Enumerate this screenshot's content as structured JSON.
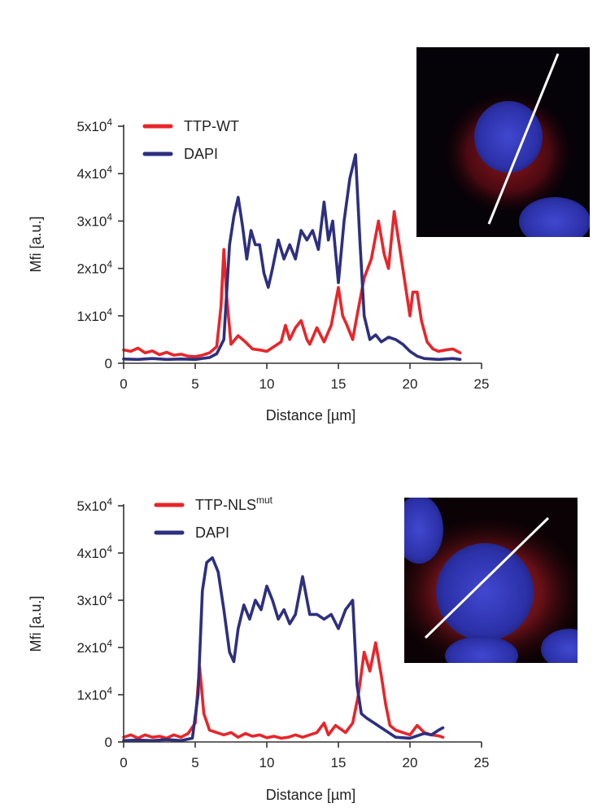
{
  "colors": {
    "red": "#e8252a",
    "navy": "#2d2f7f",
    "axis": "#333333"
  },
  "chart_data": [
    {
      "type": "line",
      "xlabel": "Distance [µm]",
      "ylabel": "Mfi [a.u.]",
      "xlim": [
        0,
        25
      ],
      "ylim": [
        0,
        50000
      ],
      "x_ticks": [
        "0",
        "5",
        "10",
        "15",
        "20",
        "25"
      ],
      "y_ticks": [
        {
          "base": "0",
          "exp": ""
        },
        {
          "base": "1x10",
          "exp": "4"
        },
        {
          "base": "2x10",
          "exp": "4"
        },
        {
          "base": "3x10",
          "exp": "4"
        },
        {
          "base": "4x10",
          "exp": "4"
        },
        {
          "base": "5x10",
          "exp": "4"
        }
      ],
      "legend_position": "top-left",
      "grid": false,
      "series": [
        {
          "name": "TTP-WT",
          "name_sup": "",
          "color": "#e8252a",
          "points": [
            [
              0,
              2800
            ],
            [
              0.5,
              2500
            ],
            [
              1,
              3200
            ],
            [
              1.5,
              2200
            ],
            [
              2,
              2600
            ],
            [
              2.5,
              1800
            ],
            [
              3,
              2300
            ],
            [
              3.5,
              1700
            ],
            [
              4,
              1900
            ],
            [
              4.5,
              1500
            ],
            [
              5,
              1400
            ],
            [
              5.5,
              1700
            ],
            [
              6,
              2200
            ],
            [
              6.5,
              3500
            ],
            [
              6.8,
              12000
            ],
            [
              7,
              24000
            ],
            [
              7.2,
              14000
            ],
            [
              7.5,
              4000
            ],
            [
              8,
              5800
            ],
            [
              8.5,
              4500
            ],
            [
              9,
              3000
            ],
            [
              9.5,
              2800
            ],
            [
              10,
              2500
            ],
            [
              10.5,
              3500
            ],
            [
              11,
              4500
            ],
            [
              11.3,
              8000
            ],
            [
              11.6,
              5000
            ],
            [
              12,
              7500
            ],
            [
              12.4,
              9000
            ],
            [
              12.8,
              5000
            ],
            [
              13,
              4000
            ],
            [
              13.5,
              7500
            ],
            [
              14,
              4500
            ],
            [
              14.5,
              8000
            ],
            [
              15,
              16000
            ],
            [
              15.3,
              10000
            ],
            [
              15.6,
              8000
            ],
            [
              16,
              5000
            ],
            [
              16.3,
              10000
            ],
            [
              16.8,
              18000
            ],
            [
              17.3,
              22000
            ],
            [
              17.8,
              30000
            ],
            [
              18.2,
              23000
            ],
            [
              18.5,
              20000
            ],
            [
              18.9,
              32000
            ],
            [
              19.3,
              24000
            ],
            [
              19.7,
              16000
            ],
            [
              20,
              10000
            ],
            [
              20.2,
              15000
            ],
            [
              20.5,
              15000
            ],
            [
              20.8,
              9000
            ],
            [
              21.2,
              4500
            ],
            [
              21.6,
              3000
            ],
            [
              22,
              2500
            ],
            [
              22.5,
              2800
            ],
            [
              23,
              3000
            ],
            [
              23.5,
              2200
            ]
          ]
        },
        {
          "name": "DAPI",
          "name_sup": "",
          "color": "#2d2f7f",
          "points": [
            [
              0,
              900
            ],
            [
              1,
              800
            ],
            [
              2,
              1000
            ],
            [
              3,
              800
            ],
            [
              4,
              900
            ],
            [
              5,
              800
            ],
            [
              6,
              1200
            ],
            [
              6.5,
              2000
            ],
            [
              7,
              5000
            ],
            [
              7.4,
              25000
            ],
            [
              7.7,
              31000
            ],
            [
              8,
              35000
            ],
            [
              8.3,
              29000
            ],
            [
              8.6,
              22000
            ],
            [
              8.9,
              28000
            ],
            [
              9.2,
              25000
            ],
            [
              9.5,
              25000
            ],
            [
              9.8,
              19000
            ],
            [
              10.1,
              16000
            ],
            [
              10.4,
              20000
            ],
            [
              10.8,
              26000
            ],
            [
              11.2,
              22000
            ],
            [
              11.6,
              25000
            ],
            [
              12,
              22000
            ],
            [
              12.4,
              28000
            ],
            [
              12.8,
              26000
            ],
            [
              13.2,
              28000
            ],
            [
              13.6,
              24000
            ],
            [
              14,
              34000
            ],
            [
              14.3,
              26000
            ],
            [
              14.6,
              30000
            ],
            [
              15,
              17000
            ],
            [
              15.4,
              30000
            ],
            [
              15.8,
              39000
            ],
            [
              16.2,
              44000
            ],
            [
              16.5,
              26000
            ],
            [
              16.8,
              10000
            ],
            [
              17.2,
              5000
            ],
            [
              17.6,
              6000
            ],
            [
              18,
              4500
            ],
            [
              18.5,
              5500
            ],
            [
              19,
              5000
            ],
            [
              19.5,
              4000
            ],
            [
              20,
              2500
            ],
            [
              20.5,
              1500
            ],
            [
              21,
              1000
            ],
            [
              22,
              800
            ],
            [
              23,
              1000
            ],
            [
              23.5,
              800
            ]
          ]
        }
      ]
    },
    {
      "type": "line",
      "xlabel": "Distance [µm]",
      "ylabel": "Mfi [a.u.]",
      "xlim": [
        0,
        25
      ],
      "ylim": [
        0,
        50000
      ],
      "x_ticks": [
        "0",
        "5",
        "10",
        "15",
        "20",
        "25"
      ],
      "y_ticks": [
        {
          "base": "0",
          "exp": ""
        },
        {
          "base": "1x10",
          "exp": "4"
        },
        {
          "base": "2x10",
          "exp": "4"
        },
        {
          "base": "3x10",
          "exp": "4"
        },
        {
          "base": "4x10",
          "exp": "4"
        },
        {
          "base": "5x10",
          "exp": "4"
        }
      ],
      "legend_position": "top-left",
      "grid": false,
      "series": [
        {
          "name": "TTP-NLS",
          "name_sup": "mut",
          "color": "#e8252a",
          "points": [
            [
              0,
              1000
            ],
            [
              0.5,
              1500
            ],
            [
              1,
              800
            ],
            [
              1.5,
              1500
            ],
            [
              2,
              1000
            ],
            [
              2.5,
              1200
            ],
            [
              3,
              800
            ],
            [
              3.5,
              1500
            ],
            [
              4,
              1000
            ],
            [
              4.5,
              1800
            ],
            [
              5,
              4000
            ],
            [
              5.3,
              16000
            ],
            [
              5.6,
              6000
            ],
            [
              6,
              2500
            ],
            [
              6.5,
              2000
            ],
            [
              7,
              1500
            ],
            [
              7.5,
              2000
            ],
            [
              8,
              1000
            ],
            [
              8.5,
              1800
            ],
            [
              9,
              1200
            ],
            [
              9.5,
              1500
            ],
            [
              10,
              900
            ],
            [
              10.5,
              1200
            ],
            [
              11,
              800
            ],
            [
              11.5,
              1000
            ],
            [
              12,
              1500
            ],
            [
              12.5,
              1000
            ],
            [
              13,
              1500
            ],
            [
              13.5,
              2000
            ],
            [
              14,
              4000
            ],
            [
              14.3,
              1500
            ],
            [
              14.8,
              3500
            ],
            [
              15.5,
              2000
            ],
            [
              16,
              4000
            ],
            [
              16.4,
              10000
            ],
            [
              16.8,
              19000
            ],
            [
              17.2,
              15000
            ],
            [
              17.6,
              21000
            ],
            [
              18,
              14000
            ],
            [
              18.3,
              8000
            ],
            [
              18.6,
              3500
            ],
            [
              19,
              2500
            ],
            [
              19.5,
              2000
            ],
            [
              20,
              1500
            ],
            [
              20.5,
              3500
            ],
            [
              21,
              2000
            ],
            [
              21.5,
              1500
            ],
            [
              22,
              1300
            ],
            [
              22.3,
              1000
            ]
          ]
        },
        {
          "name": "DAPI",
          "name_sup": "",
          "color": "#2d2f7f",
          "points": [
            [
              0,
              300
            ],
            [
              1,
              400
            ],
            [
              2,
              300
            ],
            [
              3,
              500
            ],
            [
              4,
              300
            ],
            [
              4.8,
              800
            ],
            [
              5.2,
              10000
            ],
            [
              5.5,
              32000
            ],
            [
              5.8,
              38000
            ],
            [
              6.2,
              39000
            ],
            [
              6.6,
              36000
            ],
            [
              7,
              28000
            ],
            [
              7.4,
              19000
            ],
            [
              7.7,
              17000
            ],
            [
              8,
              24000
            ],
            [
              8.4,
              29000
            ],
            [
              8.8,
              26000
            ],
            [
              9.2,
              30000
            ],
            [
              9.6,
              28000
            ],
            [
              10,
              33000
            ],
            [
              10.4,
              30000
            ],
            [
              10.8,
              26000
            ],
            [
              11.2,
              28000
            ],
            [
              11.6,
              25000
            ],
            [
              12,
              27000
            ],
            [
              12.5,
              35000
            ],
            [
              13,
              27000
            ],
            [
              13.5,
              27000
            ],
            [
              14,
              26000
            ],
            [
              14.5,
              27000
            ],
            [
              15,
              24000
            ],
            [
              15.5,
              28000
            ],
            [
              16,
              30000
            ],
            [
              16.3,
              12000
            ],
            [
              16.6,
              6000
            ],
            [
              17,
              5000
            ],
            [
              17.5,
              4000
            ],
            [
              18,
              3000
            ],
            [
              18.5,
              2000
            ],
            [
              19,
              1000
            ],
            [
              20,
              800
            ],
            [
              21,
              1800
            ],
            [
              21.5,
              1500
            ],
            [
              22,
              2500
            ],
            [
              22.3,
              3000
            ]
          ]
        }
      ]
    }
  ]
}
